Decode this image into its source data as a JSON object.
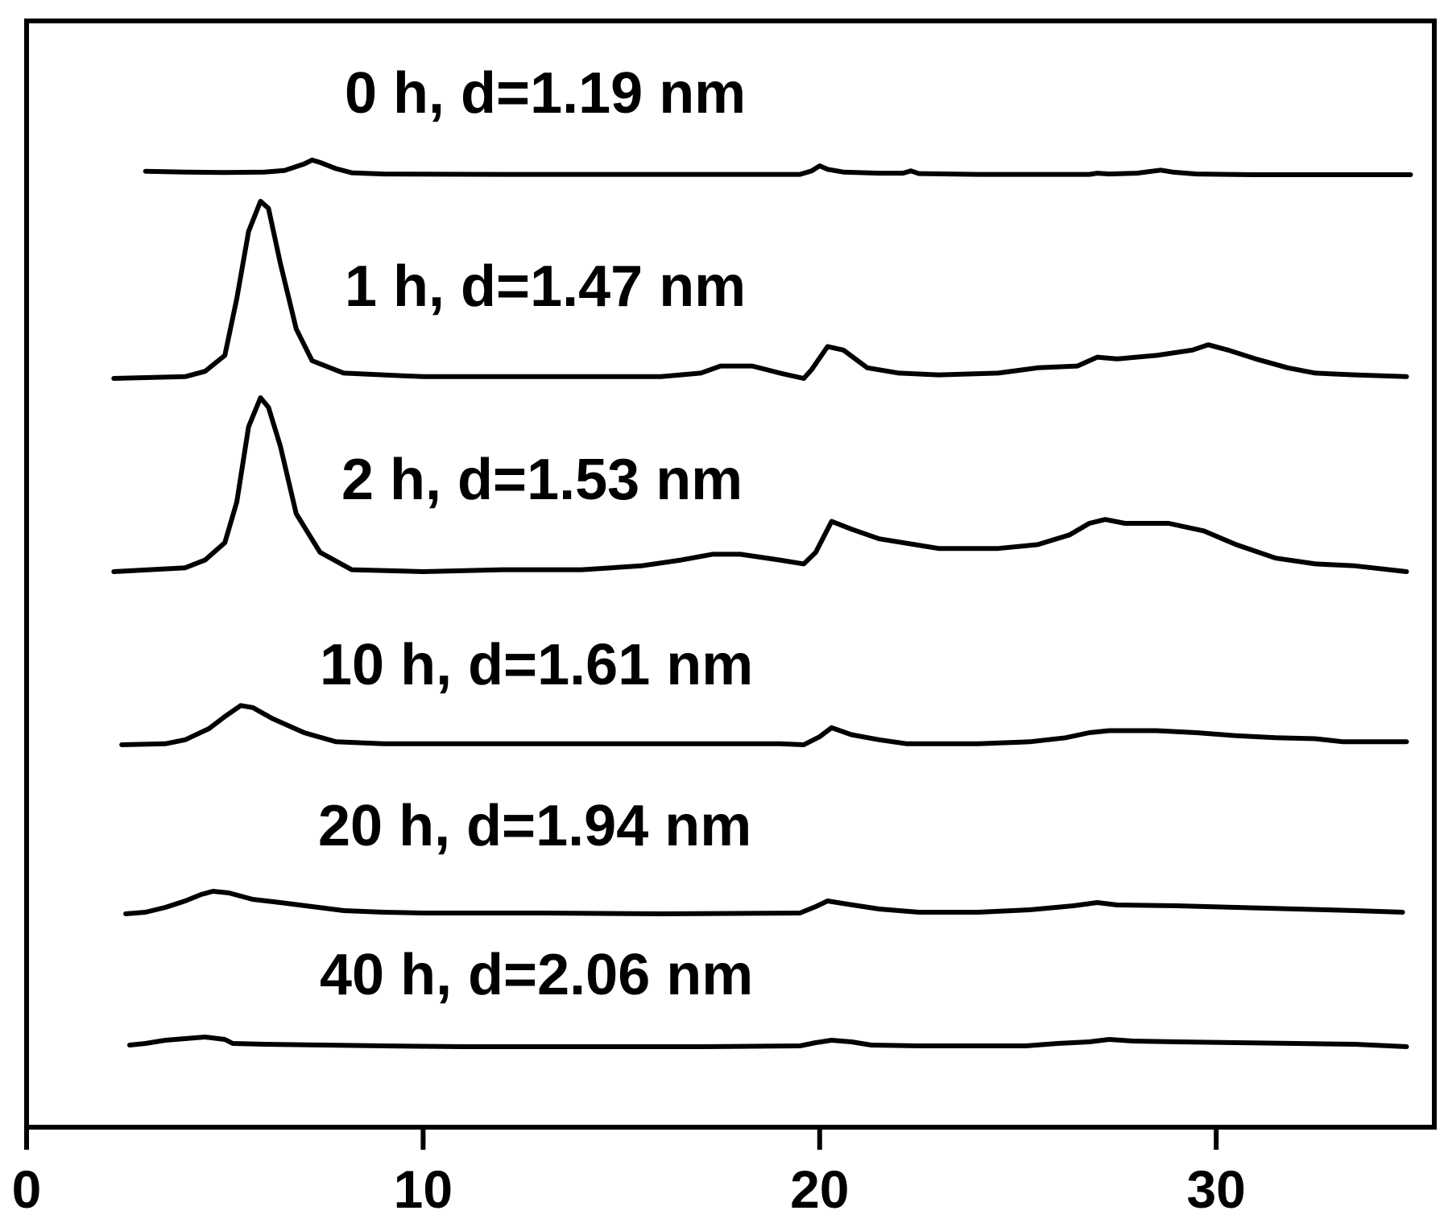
{
  "chart_data": {
    "type": "line",
    "title": "",
    "xlabel": "",
    "ylabel": "",
    "xlim": [
      0,
      35.5
    ],
    "x_ticks": [
      0,
      10,
      20,
      30
    ],
    "x_tick_labels": [
      "0",
      "10",
      "20",
      "30"
    ],
    "y_ticks_shown": false,
    "grid": false,
    "legend": "none",
    "stacked_offset_traces": true,
    "series": [
      {
        "label": "0 h, d=1.19 nm",
        "points": [
          [
            3.0,
            0.11
          ],
          [
            4.0,
            0.09
          ],
          [
            5.0,
            0.08
          ],
          [
            6.0,
            0.09
          ],
          [
            6.5,
            0.13
          ],
          [
            7.0,
            0.3
          ],
          [
            7.2,
            0.4
          ],
          [
            7.4,
            0.34
          ],
          [
            7.8,
            0.18
          ],
          [
            8.2,
            0.07
          ],
          [
            9,
            0.04
          ],
          [
            12,
            0.03
          ],
          [
            15,
            0.03
          ],
          [
            18,
            0.03
          ],
          [
            19.5,
            0.03
          ],
          [
            19.8,
            0.12
          ],
          [
            20.0,
            0.25
          ],
          [
            20.2,
            0.16
          ],
          [
            20.6,
            0.09
          ],
          [
            21.5,
            0.06
          ],
          [
            22.1,
            0.06
          ],
          [
            22.3,
            0.12
          ],
          [
            22.5,
            0.05
          ],
          [
            24,
            0.03
          ],
          [
            26,
            0.03
          ],
          [
            26.8,
            0.03
          ],
          [
            27.0,
            0.06
          ],
          [
            27.3,
            0.04
          ],
          [
            28.0,
            0.06
          ],
          [
            28.6,
            0.14
          ],
          [
            28.9,
            0.09
          ],
          [
            29.5,
            0.04
          ],
          [
            31,
            0.02
          ],
          [
            33,
            0.02
          ],
          [
            34.9,
            0.02
          ]
        ]
      },
      {
        "label": "1 h, d=1.47 nm",
        "points": [
          [
            2.2,
            0.0
          ],
          [
            4.0,
            0.01
          ],
          [
            4.5,
            0.04
          ],
          [
            5.0,
            0.13
          ],
          [
            5.3,
            0.45
          ],
          [
            5.6,
            0.83
          ],
          [
            5.9,
            1.0
          ],
          [
            6.1,
            0.96
          ],
          [
            6.4,
            0.65
          ],
          [
            6.8,
            0.28
          ],
          [
            7.2,
            0.1
          ],
          [
            8,
            0.03
          ],
          [
            10,
            0.01
          ],
          [
            13,
            0.01
          ],
          [
            16,
            0.01
          ],
          [
            17,
            0.03
          ],
          [
            17.5,
            0.07
          ],
          [
            18.3,
            0.07
          ],
          [
            19.0,
            0.03
          ],
          [
            19.6,
            0.0
          ],
          [
            19.8,
            0.05
          ],
          [
            20.2,
            0.18
          ],
          [
            20.6,
            0.16
          ],
          [
            21.2,
            0.06
          ],
          [
            22,
            0.03
          ],
          [
            23,
            0.02
          ],
          [
            24.5,
            0.03
          ],
          [
            25.5,
            0.06
          ],
          [
            26.5,
            0.07
          ],
          [
            27.0,
            0.12
          ],
          [
            27.5,
            0.11
          ],
          [
            28.5,
            0.13
          ],
          [
            29.4,
            0.16
          ],
          [
            29.8,
            0.19
          ],
          [
            30.3,
            0.16
          ],
          [
            31,
            0.11
          ],
          [
            31.8,
            0.06
          ],
          [
            32.5,
            0.03
          ],
          [
            33.5,
            0.02
          ],
          [
            34.8,
            0.01
          ]
        ]
      },
      {
        "label": "2 h, d=1.53 nm",
        "points": [
          [
            2.2,
            0.0
          ],
          [
            4.0,
            0.02
          ],
          [
            4.5,
            0.06
          ],
          [
            5.0,
            0.15
          ],
          [
            5.3,
            0.36
          ],
          [
            5.6,
            0.75
          ],
          [
            5.9,
            0.9
          ],
          [
            6.1,
            0.85
          ],
          [
            6.4,
            0.65
          ],
          [
            6.8,
            0.3
          ],
          [
            7.4,
            0.1
          ],
          [
            8.2,
            0.01
          ],
          [
            10,
            0.0
          ],
          [
            12,
            0.01
          ],
          [
            14,
            0.01
          ],
          [
            15.5,
            0.03
          ],
          [
            16.5,
            0.06
          ],
          [
            17.3,
            0.09
          ],
          [
            18.0,
            0.09
          ],
          [
            19.0,
            0.06
          ],
          [
            19.6,
            0.04
          ],
          [
            19.9,
            0.1
          ],
          [
            20.3,
            0.26
          ],
          [
            20.8,
            0.22
          ],
          [
            21.5,
            0.17
          ],
          [
            23,
            0.12
          ],
          [
            24.5,
            0.12
          ],
          [
            25.5,
            0.14
          ],
          [
            26.3,
            0.19
          ],
          [
            26.8,
            0.25
          ],
          [
            27.2,
            0.27
          ],
          [
            27.7,
            0.25
          ],
          [
            28.8,
            0.25
          ],
          [
            29.7,
            0.21
          ],
          [
            30.5,
            0.14
          ],
          [
            31.5,
            0.07
          ],
          [
            32.5,
            0.04
          ],
          [
            33.5,
            0.03
          ],
          [
            34.8,
            0.0
          ]
        ]
      },
      {
        "label": "10 h, d=1.61 nm",
        "points": [
          [
            2.4,
            0.0
          ],
          [
            3.5,
            0.01
          ],
          [
            4.0,
            0.05
          ],
          [
            4.6,
            0.16
          ],
          [
            5.0,
            0.28
          ],
          [
            5.4,
            0.39
          ],
          [
            5.7,
            0.37
          ],
          [
            6.2,
            0.26
          ],
          [
            7,
            0.12
          ],
          [
            7.8,
            0.03
          ],
          [
            9,
            0.01
          ],
          [
            12,
            0.01
          ],
          [
            15,
            0.01
          ],
          [
            17,
            0.01
          ],
          [
            19,
            0.01
          ],
          [
            19.6,
            0.0
          ],
          [
            20.0,
            0.08
          ],
          [
            20.3,
            0.17
          ],
          [
            20.8,
            0.1
          ],
          [
            21.5,
            0.05
          ],
          [
            22.2,
            0.01
          ],
          [
            24,
            0.01
          ],
          [
            25.3,
            0.03
          ],
          [
            26.2,
            0.07
          ],
          [
            26.8,
            0.12
          ],
          [
            27.3,
            0.14
          ],
          [
            28.5,
            0.14
          ],
          [
            29.5,
            0.12
          ],
          [
            30.5,
            0.09
          ],
          [
            31.5,
            0.07
          ],
          [
            32.5,
            0.06
          ],
          [
            33.2,
            0.03
          ],
          [
            34.8,
            0.03
          ]
        ]
      },
      {
        "label": "20 h, d=1.94 nm",
        "points": [
          [
            2.5,
            0.0
          ],
          [
            3.0,
            0.02
          ],
          [
            3.5,
            0.08
          ],
          [
            4.0,
            0.16
          ],
          [
            4.4,
            0.24
          ],
          [
            4.7,
            0.28
          ],
          [
            5.1,
            0.26
          ],
          [
            5.7,
            0.18
          ],
          [
            6.4,
            0.14
          ],
          [
            7.2,
            0.09
          ],
          [
            8,
            0.04
          ],
          [
            9,
            0.02
          ],
          [
            10,
            0.01
          ],
          [
            13,
            0.01
          ],
          [
            16,
            0.0
          ],
          [
            19.5,
            0.01
          ],
          [
            19.9,
            0.09
          ],
          [
            20.2,
            0.16
          ],
          [
            20.7,
            0.12
          ],
          [
            21.5,
            0.06
          ],
          [
            22.5,
            0.02
          ],
          [
            24,
            0.02
          ],
          [
            25.3,
            0.05
          ],
          [
            26.4,
            0.1
          ],
          [
            27.0,
            0.14
          ],
          [
            27.5,
            0.11
          ],
          [
            29,
            0.1
          ],
          [
            30.5,
            0.08
          ],
          [
            32,
            0.06
          ],
          [
            33.5,
            0.04
          ],
          [
            34.7,
            0.02
          ]
        ]
      },
      {
        "label": "40 h, d=2.06 nm",
        "points": [
          [
            2.6,
            0.0
          ],
          [
            3.0,
            0.02
          ],
          [
            3.5,
            0.06
          ],
          [
            4.0,
            0.08
          ],
          [
            4.5,
            0.1
          ],
          [
            5.0,
            0.07
          ],
          [
            5.2,
            0.02
          ],
          [
            6,
            0.01
          ],
          [
            7.5,
            0.0
          ],
          [
            9,
            -0.01
          ],
          [
            11,
            -0.02
          ],
          [
            14,
            -0.02
          ],
          [
            17,
            -0.02
          ],
          [
            19.5,
            -0.01
          ],
          [
            19.9,
            0.03
          ],
          [
            20.3,
            0.06
          ],
          [
            20.8,
            0.04
          ],
          [
            21.3,
            0.0
          ],
          [
            22.5,
            -0.01
          ],
          [
            24,
            -0.01
          ],
          [
            25.2,
            -0.01
          ],
          [
            26.0,
            0.02
          ],
          [
            26.8,
            0.04
          ],
          [
            27.3,
            0.07
          ],
          [
            27.9,
            0.05
          ],
          [
            29,
            0.04
          ],
          [
            30.5,
            0.03
          ],
          [
            32,
            0.02
          ],
          [
            33.5,
            0.01
          ],
          [
            34.8,
            -0.02
          ]
        ]
      }
    ]
  }
}
